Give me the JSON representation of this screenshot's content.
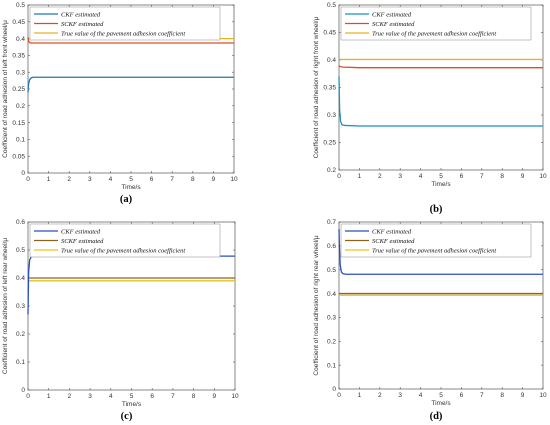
{
  "chart_data": [
    {
      "type": "line",
      "panel_label": "(a)",
      "xlabel": "Time/s",
      "ylabel": "Coefficient of road adhesion of left front wheel/μ",
      "xlim": [
        0,
        10
      ],
      "ylim": [
        0,
        0.5
      ],
      "xticks": [
        "0",
        "1",
        "2",
        "3",
        "4",
        "5",
        "6",
        "7",
        "8",
        "9",
        "10"
      ],
      "yticks": [
        "0",
        "0.05",
        "0.1",
        "0.15",
        "0.2",
        "0.25",
        "0.3",
        "0.35",
        "0.4",
        "0.45",
        "0.5"
      ],
      "legend_position": "top-left",
      "series": [
        {
          "name": "CKF estimated",
          "color": "#1f77b4",
          "x": [
            0,
            0.03,
            0.08,
            0.15,
            0.25,
            0.4,
            1,
            10
          ],
          "y": [
            0.24,
            0.265,
            0.278,
            0.283,
            0.285,
            0.285,
            0.285,
            0.285
          ]
        },
        {
          "name": "SCKF estimated",
          "color": "#d9501f",
          "x": [
            0,
            0.03,
            0.08,
            0.15,
            0.3,
            1,
            10
          ],
          "y": [
            0.405,
            0.392,
            0.388,
            0.387,
            0.387,
            0.387,
            0.387
          ]
        },
        {
          "name": "True value of the pavement adhesion coefficient",
          "color": "#edb120",
          "x": [
            0,
            10
          ],
          "y": [
            0.4,
            0.4
          ]
        }
      ]
    },
    {
      "type": "line",
      "panel_label": "(b)",
      "xlabel": "Time/s",
      "ylabel": "Coefficient of road adhesion of right front wheel/μ",
      "xlim": [
        0,
        10
      ],
      "ylim": [
        0.2,
        0.5
      ],
      "xticks": [
        "0",
        "1",
        "2",
        "3",
        "4",
        "5",
        "6",
        "7",
        "8",
        "9",
        "10"
      ],
      "yticks": [
        "0.2",
        "0.25",
        "0.3",
        "0.35",
        "0.4",
        "0.45",
        "0.5"
      ],
      "legend_position": "top-left",
      "series": [
        {
          "name": "CKF estimated",
          "color": "#1f8fbf",
          "x": [
            0,
            0.03,
            0.08,
            0.15,
            0.3,
            1,
            10
          ],
          "y": [
            0.37,
            0.31,
            0.288,
            0.282,
            0.281,
            0.28,
            0.28
          ]
        },
        {
          "name": "SCKF estimated",
          "color": "#d9501f",
          "x": [
            0,
            0.05,
            0.2,
            1,
            10
          ],
          "y": [
            0.39,
            0.388,
            0.387,
            0.386,
            0.386
          ]
        },
        {
          "name": "True value of the pavement adhesion coefficient",
          "color": "#edb120",
          "x": [
            0,
            10
          ],
          "y": [
            0.401,
            0.401
          ]
        }
      ]
    },
    {
      "type": "line",
      "panel_label": "(c)",
      "xlabel": "Time/s",
      "ylabel": "Coefficient of road adhesion of left rear wheel/μ",
      "xlim": [
        0,
        10
      ],
      "ylim": [
        0,
        0.6
      ],
      "xticks": [
        "0",
        "1",
        "2",
        "3",
        "4",
        "5",
        "6",
        "7",
        "8",
        "9",
        "10"
      ],
      "yticks": [
        "0",
        "0.1",
        "0.2",
        "0.3",
        "0.4",
        "0.5",
        "0.6"
      ],
      "legend_position": "top-left",
      "series": [
        {
          "name": "CKF estimated",
          "color": "#2b4fbf",
          "x": [
            0,
            0.03,
            0.08,
            0.15,
            0.25,
            0.4,
            1,
            10
          ],
          "y": [
            0.27,
            0.42,
            0.465,
            0.475,
            0.478,
            0.478,
            0.478,
            0.478
          ]
        },
        {
          "name": "SCKF estimated",
          "color": "#8c6420",
          "x": [
            0,
            10
          ],
          "y": [
            0.4,
            0.4
          ]
        },
        {
          "name": "True value of the pavement adhesion coefficient",
          "color": "#edc020",
          "x": [
            0,
            10
          ],
          "y": [
            0.39,
            0.39
          ]
        }
      ]
    },
    {
      "type": "line",
      "panel_label": "(d)",
      "xlabel": "Time/s",
      "ylabel": "Coefficient of road adhesion of right rear wheel/μ",
      "xlim": [
        0,
        10
      ],
      "ylim": [
        0,
        0.7
      ],
      "xticks": [
        "0",
        "1",
        "2",
        "3",
        "4",
        "5",
        "6",
        "7",
        "8",
        "9",
        "10"
      ],
      "yticks": [
        "0",
        "0.1",
        "0.2",
        "0.3",
        "0.4",
        "0.5",
        "0.6",
        "0.7"
      ],
      "legend_position": "top-left",
      "series": [
        {
          "name": "CKF estimated",
          "color": "#2b4fbf",
          "x": [
            0,
            0.02,
            0.06,
            0.12,
            0.2,
            0.35,
            1,
            10
          ],
          "y": [
            0.67,
            0.6,
            0.52,
            0.49,
            0.483,
            0.481,
            0.481,
            0.481
          ]
        },
        {
          "name": "SCKF estimated",
          "color": "#8c6420",
          "x": [
            0,
            10
          ],
          "y": [
            0.4,
            0.4
          ]
        },
        {
          "name": "True value of the pavement adhesion coefficient",
          "color": "#edc020",
          "x": [
            0,
            10
          ],
          "y": [
            0.393,
            0.393
          ]
        }
      ]
    }
  ]
}
